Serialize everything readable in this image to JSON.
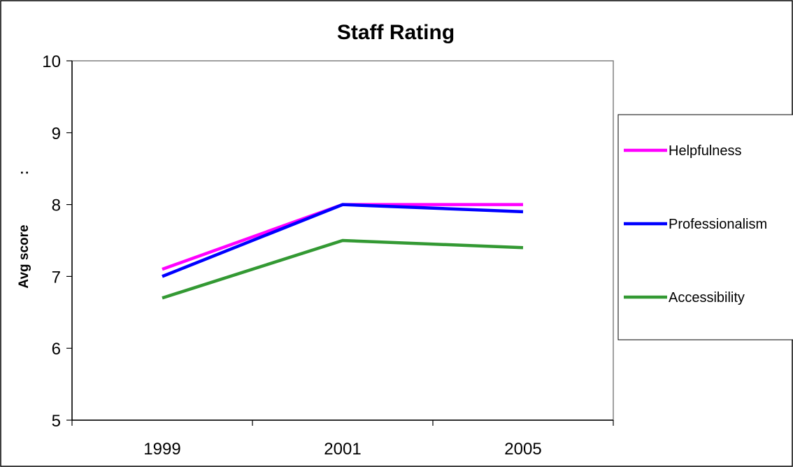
{
  "chart_data": {
    "type": "line",
    "title": "Staff Rating",
    "ylabel": "Avg score",
    "ylabel_mark": ":",
    "xlabel": "",
    "categories": [
      "1999",
      "2001",
      "2005"
    ],
    "ylim": [
      5,
      10
    ],
    "yticks": [
      "5",
      "6",
      "7",
      "8",
      "9",
      "10"
    ],
    "grid": false,
    "legend_position": "right",
    "series": [
      {
        "name": "Helpfulness",
        "color": "#ff00ff",
        "values": [
          7.1,
          8.0,
          8.0
        ]
      },
      {
        "name": "Professionalism",
        "color": "#0000ff",
        "values": [
          7.0,
          8.0,
          7.9
        ]
      },
      {
        "name": "Accessibility",
        "color": "#339933",
        "values": [
          6.7,
          7.5,
          7.4
        ]
      }
    ]
  }
}
